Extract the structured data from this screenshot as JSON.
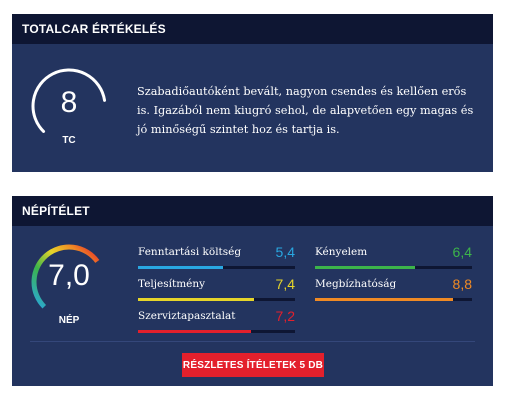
{
  "totalcar": {
    "header": "TOTALCAR ÉRTÉKELÉS",
    "score": "8",
    "score_fraction": 0.8,
    "score_label": "TC",
    "text": "Szabadiőautóként bevált, nagyon csendes és kellően erős is. Igazából nem kiugró sehol, de alapvetően egy magas és jó minőségű szintet hoz és tartja is."
  },
  "nepitelet": {
    "header": "NÉPÍTÉLET",
    "score": "7,0",
    "score_fraction": 0.7,
    "score_label": "NÉP",
    "metrics": [
      {
        "label": "Fenntartási költség",
        "value": "5,4",
        "fraction": 0.54,
        "color": "#29a7e1"
      },
      {
        "label": "Teljesítmény",
        "value": "7,4",
        "fraction": 0.74,
        "color": "#e6d52a"
      },
      {
        "label": "Szerviztapasztalat",
        "value": "7,2",
        "fraction": 0.72,
        "color": "#e3202c"
      },
      {
        "label": "Kényelem",
        "value": "6,4",
        "fraction": 0.64,
        "color": "#3cb44a"
      },
      {
        "label": "Megbízhatóság",
        "value": "8,8",
        "fraction": 0.88,
        "color": "#f08a24"
      }
    ],
    "button_label": "RÉSZLETES ÍTÉLETEK 5 DB"
  },
  "colors": {
    "card_bg": "#23345f",
    "header_bg": "#0e1633",
    "accent_red": "#e3202c"
  }
}
